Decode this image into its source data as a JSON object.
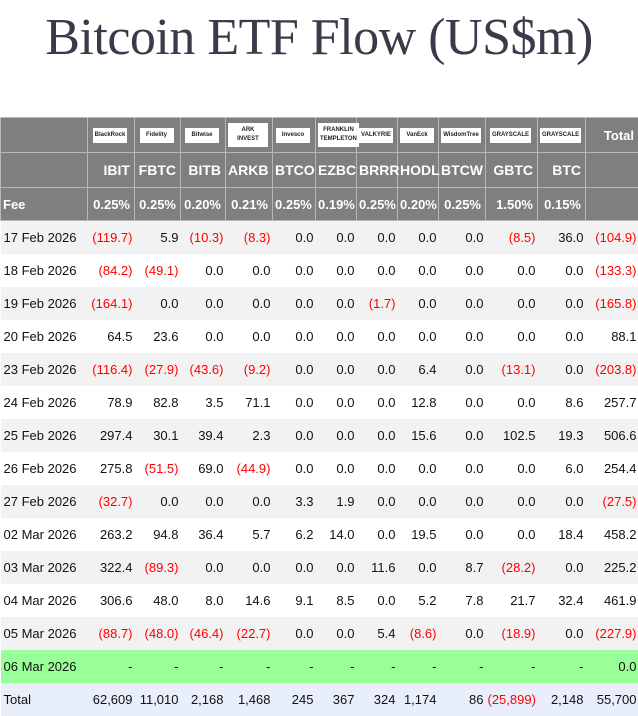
{
  "title": "Bitcoin ETF Flow (US$m)",
  "colors": {
    "header_bg": "#7f7f7f",
    "negative": "#ff0000",
    "today_row": "#99ff99",
    "total_row": "#e8eefa"
  },
  "issuers": [
    "BlackRock",
    "Fidelity",
    "Bitwise",
    "ARK INVEST",
    "Invesco",
    "FRANKLIN TEMPLETON",
    "VALKYRIE",
    "VanEck",
    "WisdomTree",
    "GRAYSCALE",
    "GRAYSCALE"
  ],
  "total_header": "Total",
  "tickers": [
    "IBIT",
    "FBTC",
    "BITB",
    "ARKB",
    "BTCO",
    "EZBC",
    "BRRR",
    "HODL",
    "BTCW",
    "GBTC",
    "BTC"
  ],
  "fee_label": "Fee",
  "fees": [
    "0.25%",
    "0.25%",
    "0.20%",
    "0.21%",
    "0.25%",
    "0.19%",
    "0.25%",
    "0.20%",
    "0.25%",
    "1.50%",
    "0.15%"
  ],
  "rows": [
    {
      "date": "17 Feb 2026",
      "values": [
        "(119.7)",
        "5.9",
        "(10.3)",
        "(8.3)",
        "0.0",
        "0.0",
        "0.0",
        "0.0",
        "0.0",
        "(8.5)",
        "36.0",
        "(104.9)"
      ]
    },
    {
      "date": "18 Feb 2026",
      "values": [
        "(84.2)",
        "(49.1)",
        "0.0",
        "0.0",
        "0.0",
        "0.0",
        "0.0",
        "0.0",
        "0.0",
        "0.0",
        "0.0",
        "(133.3)"
      ]
    },
    {
      "date": "19 Feb 2026",
      "values": [
        "(164.1)",
        "0.0",
        "0.0",
        "0.0",
        "0.0",
        "0.0",
        "(1.7)",
        "0.0",
        "0.0",
        "0.0",
        "0.0",
        "(165.8)"
      ]
    },
    {
      "date": "20 Feb 2026",
      "values": [
        "64.5",
        "23.6",
        "0.0",
        "0.0",
        "0.0",
        "0.0",
        "0.0",
        "0.0",
        "0.0",
        "0.0",
        "0.0",
        "88.1"
      ]
    },
    {
      "date": "23 Feb 2026",
      "values": [
        "(116.4)",
        "(27.9)",
        "(43.6)",
        "(9.2)",
        "0.0",
        "0.0",
        "0.0",
        "6.4",
        "0.0",
        "(13.1)",
        "0.0",
        "(203.8)"
      ]
    },
    {
      "date": "24 Feb 2026",
      "values": [
        "78.9",
        "82.8",
        "3.5",
        "71.1",
        "0.0",
        "0.0",
        "0.0",
        "12.8",
        "0.0",
        "0.0",
        "8.6",
        "257.7"
      ]
    },
    {
      "date": "25 Feb 2026",
      "values": [
        "297.4",
        "30.1",
        "39.4",
        "2.3",
        "0.0",
        "0.0",
        "0.0",
        "15.6",
        "0.0",
        "102.5",
        "19.3",
        "506.6"
      ]
    },
    {
      "date": "26 Feb 2026",
      "values": [
        "275.8",
        "(51.5)",
        "69.0",
        "(44.9)",
        "0.0",
        "0.0",
        "0.0",
        "0.0",
        "0.0",
        "0.0",
        "6.0",
        "254.4"
      ]
    },
    {
      "date": "27 Feb 2026",
      "values": [
        "(32.7)",
        "0.0",
        "0.0",
        "0.0",
        "3.3",
        "1.9",
        "0.0",
        "0.0",
        "0.0",
        "0.0",
        "0.0",
        "(27.5)"
      ]
    },
    {
      "date": "02 Mar 2026",
      "values": [
        "263.2",
        "94.8",
        "36.4",
        "5.7",
        "6.2",
        "14.0",
        "0.0",
        "19.5",
        "0.0",
        "0.0",
        "18.4",
        "458.2"
      ]
    },
    {
      "date": "03 Mar 2026",
      "values": [
        "322.4",
        "(89.3)",
        "0.0",
        "0.0",
        "0.0",
        "0.0",
        "11.6",
        "0.0",
        "8.7",
        "(28.2)",
        "0.0",
        "225.2"
      ]
    },
    {
      "date": "04 Mar 2026",
      "values": [
        "306.6",
        "48.0",
        "8.0",
        "14.6",
        "9.1",
        "8.5",
        "0.0",
        "5.2",
        "7.8",
        "21.7",
        "32.4",
        "461.9"
      ]
    },
    {
      "date": "05 Mar 2026",
      "values": [
        "(88.7)",
        "(48.0)",
        "(46.4)",
        "(22.7)",
        "0.0",
        "0.0",
        "5.4",
        "(8.6)",
        "0.0",
        "(18.9)",
        "0.0",
        "(227.9)"
      ]
    },
    {
      "date": "06 Mar 2026",
      "values": [
        "-",
        "-",
        "-",
        "-",
        "-",
        "-",
        "-",
        "-",
        "-",
        "-",
        "-",
        "0.0"
      ],
      "highlight": true
    }
  ],
  "total_row": {
    "label": "Total",
    "values": [
      "62,609",
      "11,010",
      "2,168",
      "1,468",
      "245",
      "367",
      "324",
      "1,174",
      "86",
      "(25,899)",
      "2,148",
      "55,700"
    ]
  }
}
